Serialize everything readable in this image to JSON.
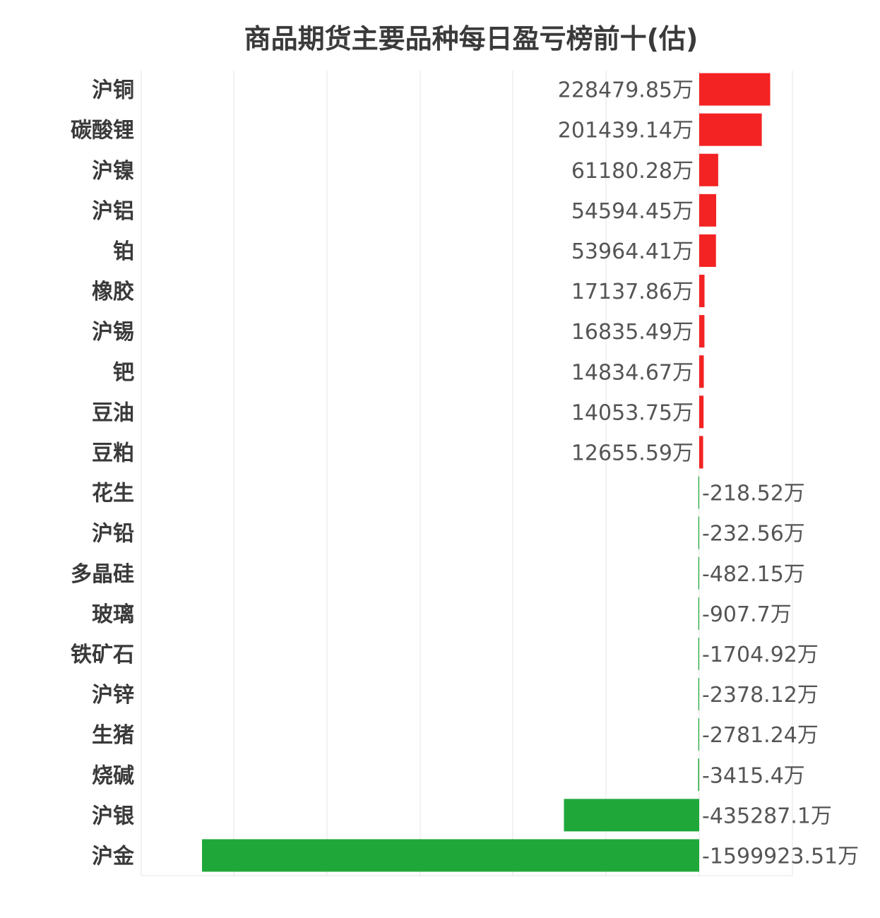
{
  "chart_data": {
    "type": "bar",
    "orientation": "horizontal",
    "title": "商品期货主要品种每日盈亏榜前十(估)",
    "unit": "万",
    "categories": [
      "沪铜",
      "碳酸锂",
      "沪镍",
      "沪铝",
      "铂",
      "橡胶",
      "沪锡",
      "钯",
      "豆油",
      "豆粕",
      "花生",
      "沪铅",
      "多晶硅",
      "玻璃",
      "铁矿石",
      "沪锌",
      "生猪",
      "烧碱",
      "沪银",
      "沪金"
    ],
    "values": [
      228479.85,
      201439.14,
      61180.28,
      54594.45,
      53964.41,
      17137.86,
      16835.49,
      14834.67,
      14053.75,
      12655.59,
      -218.52,
      -232.56,
      -482.15,
      -907.7,
      -1704.92,
      -2378.12,
      -2781.24,
      -3415.4,
      -435287.1,
      -1599923.51
    ],
    "value_labels": [
      "228479.85万",
      "201439.14万",
      "61180.28万",
      "54594.45万",
      "53964.41万",
      "17137.86万",
      "16835.49万",
      "14834.67万",
      "14053.75万",
      "12655.59万",
      "-218.52万",
      "-232.56万",
      "-482.15万",
      "-907.7万",
      "-1704.92万",
      "-2378.12万",
      "-2781.24万",
      "-3415.4万",
      "-435287.1万",
      "-1599923.51万"
    ],
    "xlim": [
      -1800000,
      300000
    ],
    "grid": true,
    "colors": {
      "positive": "#f42323",
      "negative": "#1fa839"
    }
  }
}
